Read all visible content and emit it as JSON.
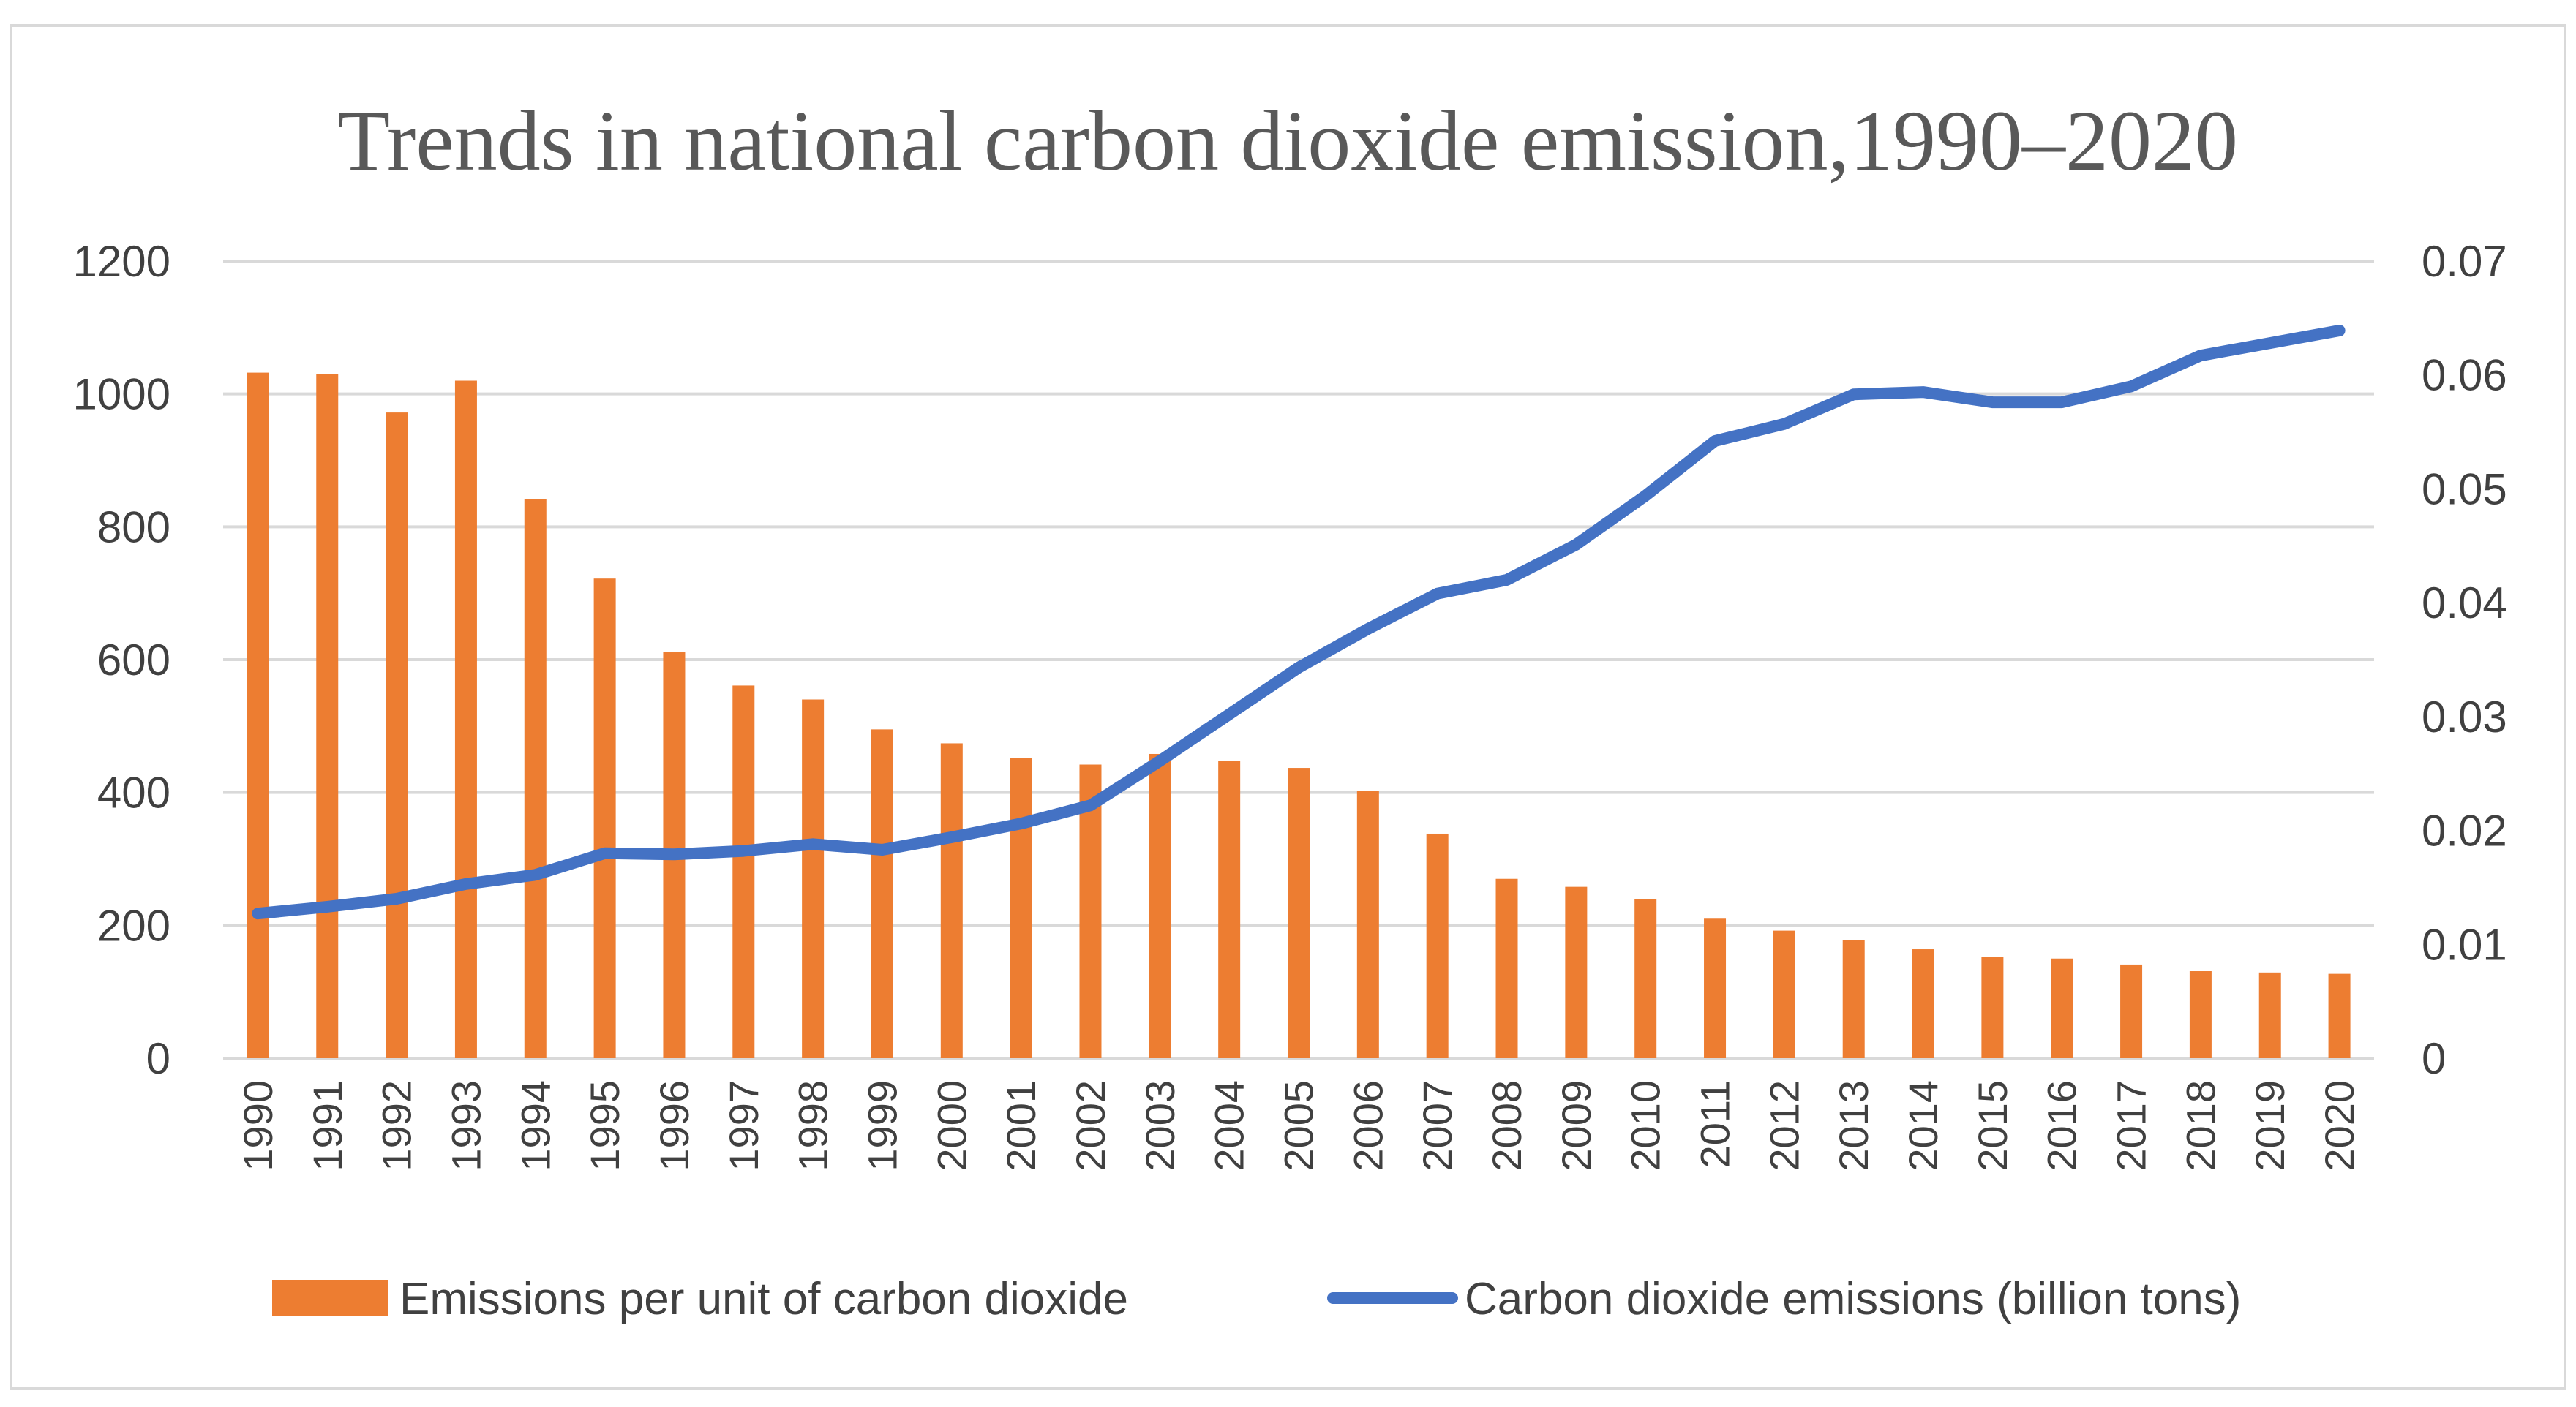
{
  "chart_data": {
    "type": "bar",
    "title": "Trends in national carbon dioxide emission,1990–2020",
    "categories": [
      "1990",
      "1991",
      "1992",
      "1993",
      "1994",
      "1995",
      "1996",
      "1997",
      "1998",
      "1999",
      "2000",
      "2001",
      "2002",
      "2003",
      "2004",
      "2005",
      "2006",
      "2007",
      "2008",
      "2009",
      "2010",
      "2011",
      "2012",
      "2013",
      "2014",
      "2015",
      "2016",
      "2017",
      "2018",
      "2019",
      "2020"
    ],
    "series": [
      {
        "name": "Emissions per unit of carbon dioxide",
        "type": "bar",
        "axis": "left",
        "color": "#ED7D31",
        "values": [
          1032,
          1030,
          972,
          1020,
          842,
          722,
          611,
          561,
          540,
          495,
          474,
          452,
          442,
          458,
          448,
          437,
          402,
          338,
          270,
          258,
          240,
          210,
          192,
          178,
          164,
          153,
          150,
          141,
          131,
          129,
          127
        ]
      },
      {
        "name": "Carbon dioxide emissions (billion tons)",
        "type": "line",
        "axis": "right",
        "color": "#4472C4",
        "values": [
          0.0127,
          0.0133,
          0.014,
          0.0153,
          0.0161,
          0.018,
          0.0179,
          0.0182,
          0.0188,
          0.0183,
          0.0194,
          0.0206,
          0.0222,
          0.0261,
          0.0302,
          0.0343,
          0.0377,
          0.0408,
          0.042,
          0.0451,
          0.0494,
          0.0542,
          0.0557,
          0.0583,
          0.0585,
          0.0576,
          0.0576,
          0.059,
          0.0617,
          0.0628,
          0.0639
        ]
      }
    ],
    "y_left": {
      "min": 0,
      "max": 1200,
      "ticks": [
        0,
        200,
        400,
        600,
        800,
        1000,
        1200
      ],
      "tick_labels": [
        "0",
        "200",
        "400",
        "600",
        "800",
        "1000",
        "1200"
      ]
    },
    "y_right": {
      "min": 0,
      "max": 0.07,
      "ticks": [
        0,
        0.01,
        0.02,
        0.03,
        0.04,
        0.05,
        0.06,
        0.07
      ],
      "tick_labels": [
        "0",
        "0.01",
        "0.02",
        "0.03",
        "0.04",
        "0.05",
        "0.06",
        "0.07"
      ]
    },
    "grid": true,
    "legend_position": "bottom",
    "xlabel": "",
    "ylabel": ""
  }
}
